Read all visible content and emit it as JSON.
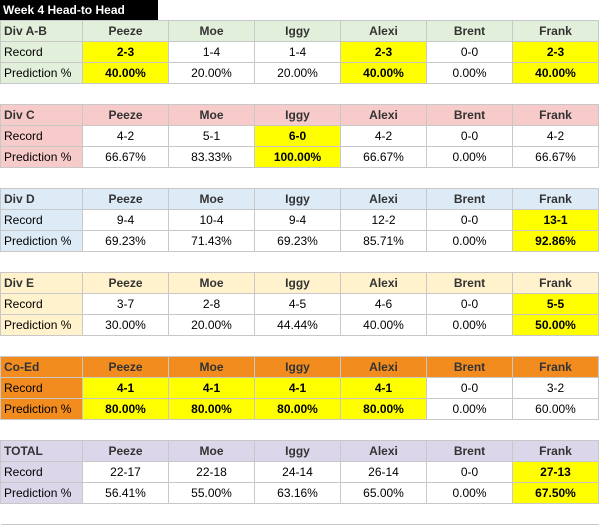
{
  "title": "Week 4 Head-to Head",
  "players": [
    "Peeze",
    "Moe",
    "Iggy",
    "Alexi",
    "Brent",
    "Frank"
  ],
  "colors": {
    "div_ab": "#e2efda",
    "div_c": "#f8cbcb",
    "div_d": "#ddebf7",
    "div_e": "#fff2cc",
    "coed": "#f28c1f",
    "total": "#dcd6ea",
    "highlight": "#ffff00"
  },
  "divisions": [
    {
      "name": "Div A-B",
      "color": "#e2efda",
      "rowlabel_color": "#e2efda",
      "header_color": "#e2efda",
      "record_label": "Record",
      "pct_label": "Prediction %",
      "records": [
        "2-3",
        "1-4",
        "1-4",
        "2-3",
        "0-0",
        "2-3"
      ],
      "pcts": [
        "40.00%",
        "20.00%",
        "20.00%",
        "40.00%",
        "0.00%",
        "40.00%"
      ],
      "highlight": [
        true,
        false,
        false,
        true,
        false,
        true
      ]
    },
    {
      "name": "Div C",
      "color": "#f8cbcb",
      "rowlabel_color": "#f8cbcb",
      "header_color": "#f8cbcb",
      "record_label": "Record",
      "pct_label": "Prediction %",
      "records": [
        "4-2",
        "5-1",
        "6-0",
        "4-2",
        "0-0",
        "4-2"
      ],
      "pcts": [
        "66.67%",
        "83.33%",
        "100.00%",
        "66.67%",
        "0.00%",
        "66.67%"
      ],
      "highlight": [
        false,
        false,
        true,
        false,
        false,
        false
      ]
    },
    {
      "name": "Div D",
      "color": "#ddebf7",
      "rowlabel_color": "#ddebf7",
      "header_color": "#ddebf7",
      "record_label": "Record",
      "pct_label": "Prediction %",
      "records": [
        "9-4",
        "10-4",
        "9-4",
        "12-2",
        "0-0",
        "13-1"
      ],
      "pcts": [
        "69.23%",
        "71.43%",
        "69.23%",
        "85.71%",
        "0.00%",
        "92.86%"
      ],
      "highlight": [
        false,
        false,
        false,
        false,
        false,
        true
      ]
    },
    {
      "name": "Div E",
      "color": "#fff2cc",
      "rowlabel_color": "#fff2cc",
      "header_color": "#fff2cc",
      "record_label": "Record",
      "pct_label": "Prediction %",
      "records": [
        "3-7",
        "2-8",
        "4-5",
        "4-6",
        "0-0",
        "5-5"
      ],
      "pcts": [
        "30.00%",
        "20.00%",
        "44.44%",
        "40.00%",
        "0.00%",
        "50.00%"
      ],
      "highlight": [
        false,
        false,
        false,
        false,
        false,
        true
      ]
    },
    {
      "name": "Co-Ed",
      "color": "#f28c1f",
      "rowlabel_color": "#f28c1f",
      "header_color": "#f28c1f",
      "record_label": "Record",
      "pct_label": "Prediction %",
      "records": [
        "4-1",
        "4-1",
        "4-1",
        "4-1",
        "0-0",
        "3-2"
      ],
      "pcts": [
        "80.00%",
        "80.00%",
        "80.00%",
        "80.00%",
        "0.00%",
        "60.00%"
      ],
      "highlight": [
        true,
        true,
        true,
        true,
        false,
        false
      ]
    },
    {
      "name": "TOTAL",
      "color": "#dcd6ea",
      "rowlabel_color": "#dcd6ea",
      "header_color": "#dcd6ea",
      "record_label": "Record",
      "pct_label": "Prediction %",
      "records": [
        "22-17",
        "22-18",
        "24-14",
        "26-14",
        "0-0",
        "27-13"
      ],
      "pcts": [
        "56.41%",
        "55.00%",
        "63.16%",
        "65.00%",
        "0.00%",
        "67.50%"
      ],
      "highlight": [
        false,
        false,
        false,
        false,
        false,
        true
      ]
    }
  ]
}
